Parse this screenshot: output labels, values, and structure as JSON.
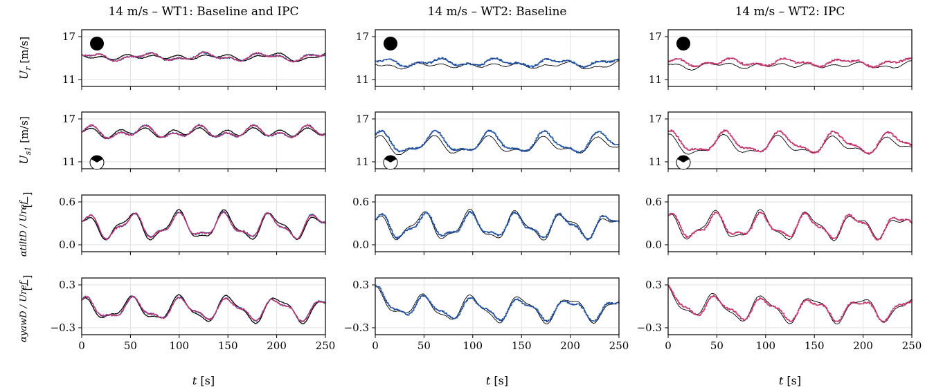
{
  "figure": {
    "column_titles": [
      "14 m/s – WT1: Baseline and IPC",
      "14 m/s – WT2: Baseline",
      "14 m/s – WT2: IPC"
    ],
    "x_label": "t [s]",
    "x_ticks": [
      "0",
      "50",
      "100",
      "150",
      "200",
      "250"
    ],
    "row_labels": [
      {
        "main": "U",
        "sub": "r",
        "unit": "[m/s]"
      },
      {
        "main": "U",
        "sub": "s1",
        "unit": "[m/s]"
      },
      {
        "main": "αtiltD / Uref",
        "unit": "[−]"
      },
      {
        "main": "αyawD / Uref",
        "unit": "[−]"
      }
    ],
    "y_ticks": [
      [
        "17",
        "11"
      ],
      [
        "17",
        "11"
      ],
      [
        "0.6",
        "0.0"
      ],
      [
        "0.3",
        "−0.3"
      ]
    ],
    "colors": {
      "reference": "#000000",
      "baseline": "#1f4e9c",
      "ipc": "#c2366e",
      "grid": "#e2e2e2"
    },
    "markers": [
      "filled-disc",
      "disc-with-upper-sector",
      "",
      ""
    ]
  },
  "chart_data": [
    {
      "type": "line",
      "panel": "row1-col1",
      "x": [
        0,
        250
      ],
      "ylim": [
        10.2,
        17.8
      ],
      "series_colors": [
        "#000000",
        "#1f4e9c",
        "#c2366e"
      ]
    },
    {
      "type": "line",
      "panel": "row1-col2",
      "x": [
        0,
        250
      ],
      "ylim": [
        10.2,
        17.8
      ],
      "series_colors": [
        "#000000",
        "#1f4e9c"
      ]
    },
    {
      "type": "line",
      "panel": "row1-col3",
      "x": [
        0,
        250
      ],
      "ylim": [
        10.2,
        17.8
      ],
      "series_colors": [
        "#000000",
        "#c2366e"
      ]
    },
    {
      "type": "line",
      "panel": "row2-col1",
      "x": [
        0,
        250
      ],
      "ylim": [
        10.2,
        17.8
      ],
      "series_colors": [
        "#000000",
        "#1f4e9c",
        "#c2366e"
      ]
    },
    {
      "type": "line",
      "panel": "row2-col2",
      "x": [
        0,
        250
      ],
      "ylim": [
        10.2,
        17.8
      ],
      "series_colors": [
        "#000000",
        "#1f4e9c"
      ]
    },
    {
      "type": "line",
      "panel": "row2-col3",
      "x": [
        0,
        250
      ],
      "ylim": [
        10.2,
        17.8
      ],
      "series_colors": [
        "#000000",
        "#c2366e"
      ]
    },
    {
      "type": "line",
      "panel": "row3-col1",
      "x": [
        0,
        250
      ],
      "ylim": [
        -0.05,
        0.65
      ],
      "series_colors": [
        "#000000",
        "#1f4e9c",
        "#c2366e"
      ]
    },
    {
      "type": "line",
      "panel": "row3-col2",
      "x": [
        0,
        250
      ],
      "ylim": [
        -0.05,
        0.65
      ],
      "series_colors": [
        "#000000",
        "#1f4e9c"
      ]
    },
    {
      "type": "line",
      "panel": "row3-col3",
      "x": [
        0,
        250
      ],
      "ylim": [
        -0.05,
        0.65
      ],
      "series_colors": [
        "#000000",
        "#c2366e"
      ]
    },
    {
      "type": "line",
      "panel": "row4-col1",
      "x": [
        0,
        250
      ],
      "ylim": [
        -0.35,
        0.35
      ],
      "series_colors": [
        "#000000",
        "#1f4e9c",
        "#c2366e"
      ]
    },
    {
      "type": "line",
      "panel": "row4-col2",
      "x": [
        0,
        250
      ],
      "ylim": [
        -0.35,
        0.35
      ],
      "series_colors": [
        "#000000",
        "#1f4e9c"
      ]
    },
    {
      "type": "line",
      "panel": "row4-col3",
      "x": [
        0,
        250
      ],
      "ylim": [
        -0.35,
        0.35
      ],
      "series_colors": [
        "#000000",
        "#c2366e"
      ]
    }
  ]
}
